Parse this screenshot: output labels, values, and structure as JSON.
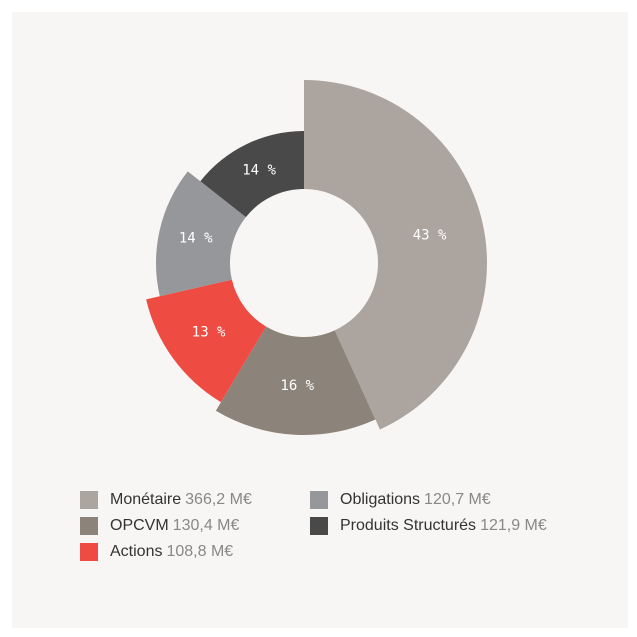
{
  "chart_data": {
    "type": "pie",
    "categories": [
      "Monétaire",
      "OPCVM",
      "Actions",
      "Obligations",
      "Produits Structurés"
    ],
    "values": [
      366.2,
      130.4,
      108.8,
      120.7,
      121.9
    ],
    "value_labels": [
      "366,2 M€",
      "130,4 M€",
      "108,8 M€",
      "120,7 M€",
      "121,9 M€"
    ],
    "percentages": [
      43,
      16,
      13,
      14,
      14
    ],
    "percentage_labels": [
      "43 %",
      "16 %",
      "13 %",
      "14 %",
      "14 %"
    ],
    "colors": [
      "#aca59f",
      "#8c837a",
      "#ee4b43",
      "#96979b",
      "#4a4949"
    ]
  }
}
